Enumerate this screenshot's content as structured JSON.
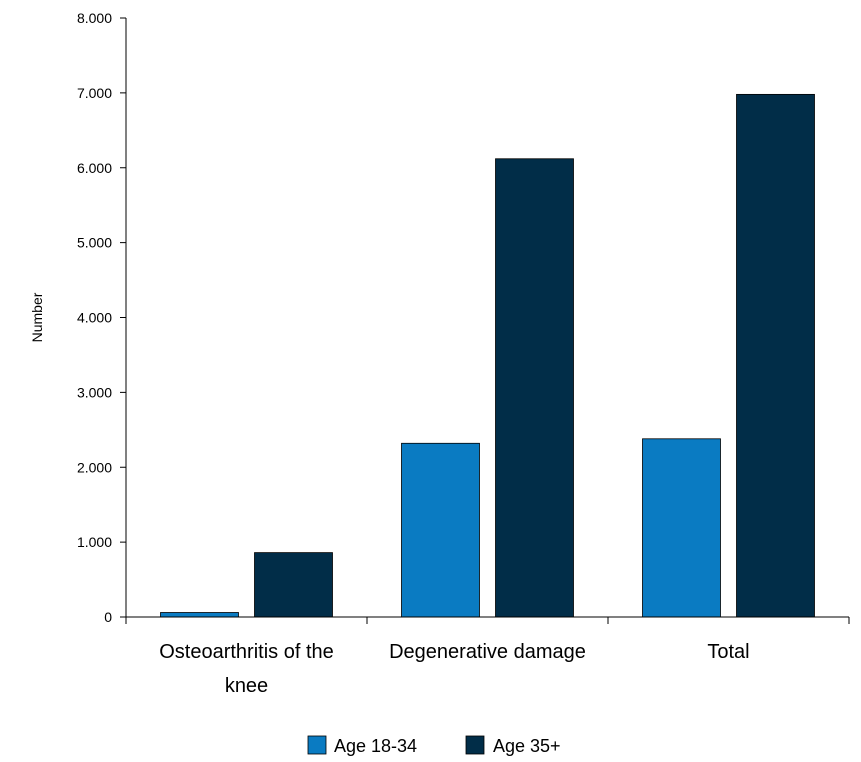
{
  "chart_data": {
    "type": "bar",
    "title": "",
    "xlabel": "",
    "ylabel": "Number",
    "ylim": [
      0,
      8000
    ],
    "yticks": [
      0,
      1000,
      2000,
      3000,
      4000,
      5000,
      6000,
      7000,
      8000
    ],
    "ytick_labels": [
      "0",
      "1.000",
      "2.000",
      "3.000",
      "4.000",
      "5.000",
      "6.000",
      "7.000",
      "8.000"
    ],
    "categories": [
      "Osteoarthritis of the knee",
      "Degenerative damage",
      "Total"
    ],
    "category_label_lines": [
      [
        "Osteoarthritis of the",
        "knee"
      ],
      [
        "Degenerative damage"
      ],
      [
        "Total"
      ]
    ],
    "series": [
      {
        "name": "Age 18-34",
        "color": "#0a7bc2",
        "values": [
          60,
          2320,
          2380
        ]
      },
      {
        "name": "Age 35+",
        "color": "#012d48",
        "values": [
          860,
          6120,
          6980
        ]
      }
    ],
    "grid": false,
    "legend_position": "bottom"
  }
}
